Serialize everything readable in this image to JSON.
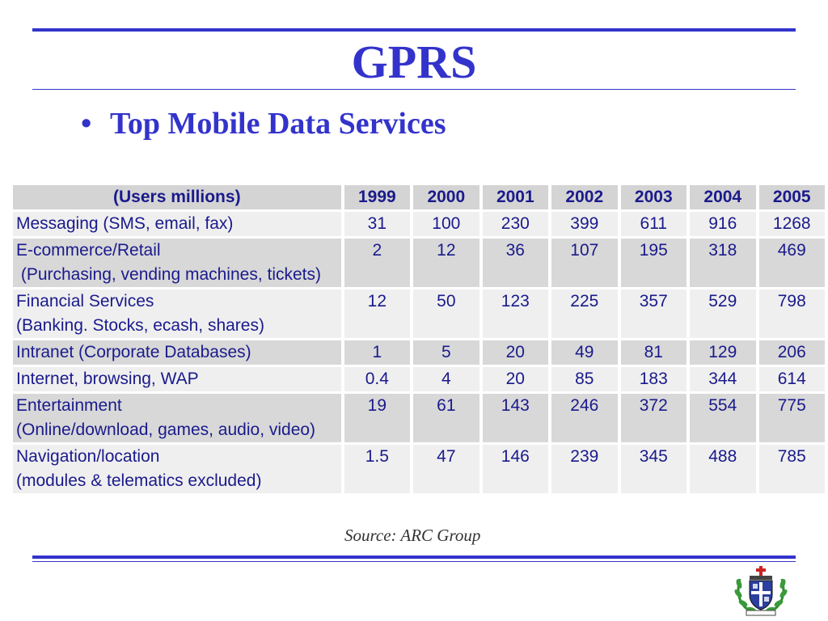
{
  "slide": {
    "title": "GPRS",
    "bullet_symbol": "•",
    "bullet": "Top Mobile Data Services"
  },
  "table": {
    "header_label": "(Users millions)",
    "years": [
      "1999",
      "2000",
      "2001",
      "2002",
      "2003",
      "2004",
      "2005"
    ],
    "rows": [
      {
        "label": [
          "Messaging (SMS, email, fax)"
        ],
        "values": [
          "31",
          "100",
          "230",
          "399",
          "611",
          "916",
          "1268"
        ]
      },
      {
        "label": [
          "E-commerce/Retail",
          " (Purchasing, vending machines, tickets)"
        ],
        "values": [
          "2",
          "12",
          "36",
          "107",
          "195",
          "318",
          "469"
        ]
      },
      {
        "label": [
          "Financial Services",
          "(Banking. Stocks, ecash, shares)"
        ],
        "values": [
          "12",
          "50",
          "123",
          "225",
          "357",
          "529",
          "798"
        ]
      },
      {
        "label": [
          "Intranet (Corporate Databases)"
        ],
        "values": [
          "1",
          "5",
          "20",
          "49",
          "81",
          "129",
          "206"
        ]
      },
      {
        "label": [
          "Internet, browsing, WAP"
        ],
        "values": [
          "0.4",
          "4",
          "20",
          "85",
          "183",
          "344",
          "614"
        ]
      },
      {
        "label": [
          "Entertainment",
          "(Online/download, games, audio, video)"
        ],
        "values": [
          "19",
          "61",
          "143",
          "246",
          "372",
          "554",
          "775"
        ]
      },
      {
        "label": [
          "Navigation/location",
          "(modules & telematics excluded)"
        ],
        "values": [
          "1.5",
          "47",
          "146",
          "239",
          "345",
          "488",
          "785"
        ]
      }
    ],
    "source": "Source: ARC Group"
  },
  "logo": {
    "icon": "school-crest-icon"
  },
  "colors": {
    "accent": "#3333cc",
    "table_text": "#1a1a8c",
    "row_dark": "#d8d8d8",
    "row_light": "#efefef"
  }
}
